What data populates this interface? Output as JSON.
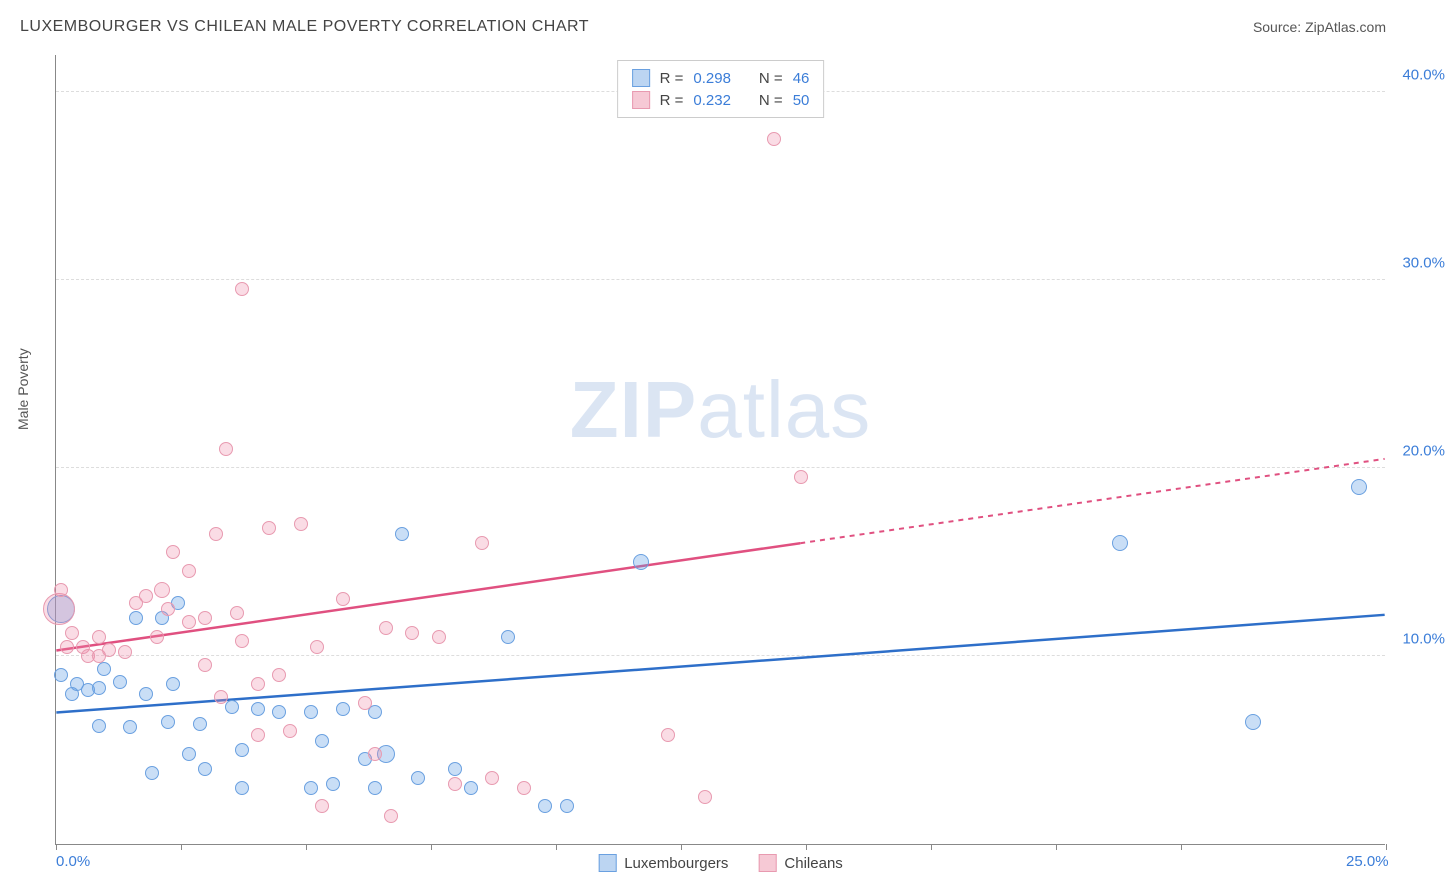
{
  "title": "LUXEMBOURGER VS CHILEAN MALE POVERTY CORRELATION CHART",
  "source_label": "Source: ZipAtlas.com",
  "ylabel": "Male Poverty",
  "watermark_a": "ZIP",
  "watermark_b": "atlas",
  "chart": {
    "type": "scatter",
    "xlim": [
      0,
      25
    ],
    "ylim": [
      0,
      42
    ],
    "x_ticks": [
      0,
      2.35,
      4.7,
      7.05,
      9.4,
      11.75,
      14.1,
      16.45,
      18.8,
      21.15,
      25
    ],
    "x_tick_labels": {
      "0": "0.0%",
      "25": "25.0%"
    },
    "y_gridlines": [
      10,
      20,
      30,
      40
    ],
    "y_tick_labels": {
      "10": "10.0%",
      "20": "20.0%",
      "30": "30.0%",
      "40": "40.0%"
    },
    "background_color": "#ffffff",
    "grid_color": "#dddddd",
    "axis_color": "#888888",
    "tick_label_color": "#3b7dd8",
    "series": [
      {
        "name": "Luxembourgers",
        "color_fill": "rgba(100,160,230,0.35)",
        "color_stroke": "#6aa0e0",
        "swatch_fill": "#bcd5f2",
        "swatch_border": "#6aa0e0",
        "line_color": "#2e6fc9",
        "R": "0.298",
        "N": "46",
        "trend": {
          "x1": 0,
          "y1": 7.0,
          "x2": 25,
          "y2": 12.2,
          "solid_until": 25
        },
        "points": [
          {
            "x": 0.1,
            "y": 9.0,
            "r": 7
          },
          {
            "x": 0.1,
            "y": 12.5,
            "r": 14
          },
          {
            "x": 0.3,
            "y": 8.0,
            "r": 7
          },
          {
            "x": 0.4,
            "y": 8.5,
            "r": 7
          },
          {
            "x": 0.6,
            "y": 8.2,
            "r": 7
          },
          {
            "x": 0.8,
            "y": 8.3,
            "r": 7
          },
          {
            "x": 0.9,
            "y": 9.3,
            "r": 7
          },
          {
            "x": 0.8,
            "y": 6.3,
            "r": 7
          },
          {
            "x": 1.2,
            "y": 8.6,
            "r": 7
          },
          {
            "x": 1.4,
            "y": 6.2,
            "r": 7
          },
          {
            "x": 1.5,
            "y": 12.0,
            "r": 7
          },
          {
            "x": 1.7,
            "y": 8.0,
            "r": 7
          },
          {
            "x": 1.8,
            "y": 3.8,
            "r": 7
          },
          {
            "x": 2.0,
            "y": 12.0,
            "r": 7
          },
          {
            "x": 2.1,
            "y": 6.5,
            "r": 7
          },
          {
            "x": 2.2,
            "y": 8.5,
            "r": 7
          },
          {
            "x": 2.3,
            "y": 12.8,
            "r": 7
          },
          {
            "x": 2.5,
            "y": 4.8,
            "r": 7
          },
          {
            "x": 2.7,
            "y": 6.4,
            "r": 7
          },
          {
            "x": 2.8,
            "y": 4.0,
            "r": 7
          },
          {
            "x": 3.3,
            "y": 7.3,
            "r": 7
          },
          {
            "x": 3.5,
            "y": 5.0,
            "r": 7
          },
          {
            "x": 3.5,
            "y": 3.0,
            "r": 7
          },
          {
            "x": 3.8,
            "y": 7.2,
            "r": 7
          },
          {
            "x": 4.2,
            "y": 7.0,
            "r": 7
          },
          {
            "x": 4.8,
            "y": 3.0,
            "r": 7
          },
          {
            "x": 4.8,
            "y": 7.0,
            "r": 7
          },
          {
            "x": 5.0,
            "y": 5.5,
            "r": 7
          },
          {
            "x": 5.2,
            "y": 3.2,
            "r": 7
          },
          {
            "x": 5.4,
            "y": 7.2,
            "r": 7
          },
          {
            "x": 5.8,
            "y": 4.5,
            "r": 7
          },
          {
            "x": 6.0,
            "y": 7.0,
            "r": 7
          },
          {
            "x": 6.0,
            "y": 3.0,
            "r": 7
          },
          {
            "x": 6.2,
            "y": 4.8,
            "r": 9
          },
          {
            "x": 6.5,
            "y": 16.5,
            "r": 7
          },
          {
            "x": 6.8,
            "y": 3.5,
            "r": 7
          },
          {
            "x": 7.5,
            "y": 4.0,
            "r": 7
          },
          {
            "x": 7.8,
            "y": 3.0,
            "r": 7
          },
          {
            "x": 8.5,
            "y": 11.0,
            "r": 7
          },
          {
            "x": 9.2,
            "y": 2.0,
            "r": 7
          },
          {
            "x": 9.6,
            "y": 2.0,
            "r": 7
          },
          {
            "x": 11.0,
            "y": 15.0,
            "r": 8
          },
          {
            "x": 20.0,
            "y": 16.0,
            "r": 8
          },
          {
            "x": 22.5,
            "y": 6.5,
            "r": 8
          },
          {
            "x": 24.5,
            "y": 19.0,
            "r": 8
          }
        ]
      },
      {
        "name": "Chileans",
        "color_fill": "rgba(240,140,170,0.30)",
        "color_stroke": "#e89ab0",
        "swatch_fill": "#f6c9d5",
        "swatch_border": "#e89ab0",
        "line_color": "#e05080",
        "R": "0.232",
        "N": "50",
        "trend": {
          "x1": 0,
          "y1": 10.3,
          "x2": 25,
          "y2": 20.5,
          "solid_until": 14
        },
        "points": [
          {
            "x": 0.05,
            "y": 12.5,
            "r": 16
          },
          {
            "x": 0.1,
            "y": 13.5,
            "r": 7
          },
          {
            "x": 0.2,
            "y": 10.5,
            "r": 7
          },
          {
            "x": 0.3,
            "y": 11.2,
            "r": 7
          },
          {
            "x": 0.5,
            "y": 10.5,
            "r": 7
          },
          {
            "x": 0.6,
            "y": 10.0,
            "r": 7
          },
          {
            "x": 0.8,
            "y": 11.0,
            "r": 7
          },
          {
            "x": 0.8,
            "y": 10.0,
            "r": 7
          },
          {
            "x": 1.0,
            "y": 10.3,
            "r": 7
          },
          {
            "x": 1.3,
            "y": 10.2,
            "r": 7
          },
          {
            "x": 1.5,
            "y": 12.8,
            "r": 7
          },
          {
            "x": 1.7,
            "y": 13.2,
            "r": 7
          },
          {
            "x": 1.9,
            "y": 11.0,
            "r": 7
          },
          {
            "x": 2.0,
            "y": 13.5,
            "r": 8
          },
          {
            "x": 2.1,
            "y": 12.5,
            "r": 7
          },
          {
            "x": 2.2,
            "y": 15.5,
            "r": 7
          },
          {
            "x": 2.5,
            "y": 11.8,
            "r": 7
          },
          {
            "x": 2.5,
            "y": 14.5,
            "r": 7
          },
          {
            "x": 2.8,
            "y": 12.0,
            "r": 7
          },
          {
            "x": 2.8,
            "y": 9.5,
            "r": 7
          },
          {
            "x": 3.0,
            "y": 16.5,
            "r": 7
          },
          {
            "x": 3.1,
            "y": 7.8,
            "r": 7
          },
          {
            "x": 3.2,
            "y": 21.0,
            "r": 7
          },
          {
            "x": 3.4,
            "y": 12.3,
            "r": 7
          },
          {
            "x": 3.5,
            "y": 10.8,
            "r": 7
          },
          {
            "x": 3.5,
            "y": 29.5,
            "r": 7
          },
          {
            "x": 3.8,
            "y": 8.5,
            "r": 7
          },
          {
            "x": 3.8,
            "y": 5.8,
            "r": 7
          },
          {
            "x": 4.0,
            "y": 16.8,
            "r": 7
          },
          {
            "x": 4.2,
            "y": 9.0,
            "r": 7
          },
          {
            "x": 4.4,
            "y": 6.0,
            "r": 7
          },
          {
            "x": 4.6,
            "y": 17.0,
            "r": 7
          },
          {
            "x": 4.9,
            "y": 10.5,
            "r": 7
          },
          {
            "x": 5.0,
            "y": 2.0,
            "r": 7
          },
          {
            "x": 5.4,
            "y": 13.0,
            "r": 7
          },
          {
            "x": 5.8,
            "y": 7.5,
            "r": 7
          },
          {
            "x": 6.0,
            "y": 4.8,
            "r": 7
          },
          {
            "x": 6.2,
            "y": 11.5,
            "r": 7
          },
          {
            "x": 6.3,
            "y": 1.5,
            "r": 7
          },
          {
            "x": 6.7,
            "y": 11.2,
            "r": 7
          },
          {
            "x": 7.2,
            "y": 11.0,
            "r": 7
          },
          {
            "x": 7.5,
            "y": 3.2,
            "r": 7
          },
          {
            "x": 8.0,
            "y": 16.0,
            "r": 7
          },
          {
            "x": 8.2,
            "y": 3.5,
            "r": 7
          },
          {
            "x": 8.8,
            "y": 3.0,
            "r": 7
          },
          {
            "x": 11.5,
            "y": 5.8,
            "r": 7
          },
          {
            "x": 12.2,
            "y": 2.5,
            "r": 7
          },
          {
            "x": 13.5,
            "y": 37.5,
            "r": 7
          },
          {
            "x": 14.0,
            "y": 19.5,
            "r": 7
          }
        ]
      }
    ]
  }
}
